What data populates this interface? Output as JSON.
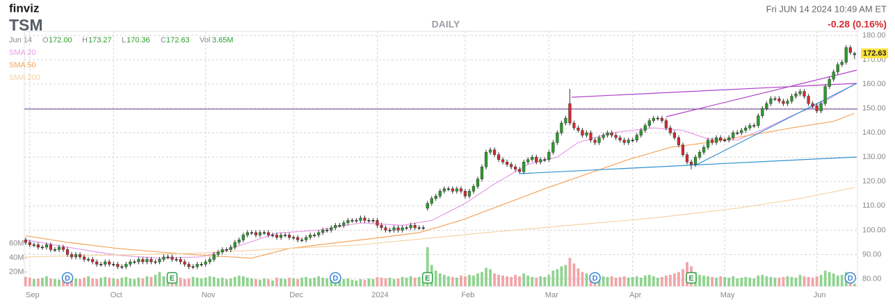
{
  "chart_data": {
    "type": "candlestick",
    "brand": "finviz",
    "symbol": "TSM",
    "timeframe": "DAILY",
    "timestamp": "Fri JUN 14 2024 10:49 AM ET",
    "change": "-0.28 (0.16%)",
    "quote_date": "Jun 14",
    "quote": [
      {
        "label": "O",
        "value": "172.00"
      },
      {
        "label": "H",
        "value": "173.27"
      },
      {
        "label": "L",
        "value": "170.36"
      },
      {
        "label": "C",
        "value": "172.63"
      },
      {
        "label": "Vol",
        "value": "3.65M"
      }
    ],
    "up_color": "#2a9d2a",
    "down_color": "#d42a30",
    "xlim": [
      -0.3,
      198.7
    ],
    "xticks": [
      {
        "value": 1,
        "label": "Sep"
      },
      {
        "value": 21,
        "label": "Oct"
      },
      {
        "value": 43,
        "label": "Nov"
      },
      {
        "value": 64,
        "label": "Dec"
      },
      {
        "value": 84,
        "label": "2024"
      },
      {
        "value": 105,
        "label": "Feb"
      },
      {
        "value": 125,
        "label": "Mar"
      },
      {
        "value": 145,
        "label": "Apr"
      },
      {
        "value": 167,
        "label": "May"
      },
      {
        "value": 189,
        "label": "Jun"
      }
    ],
    "ylim": [
      77,
      181.7
    ],
    "yticks": [
      {
        "value": 80,
        "label": "80.00"
      },
      {
        "value": 90,
        "label": "90.00"
      },
      {
        "value": 100,
        "label": "100.00"
      },
      {
        "value": 110,
        "label": "110.00"
      },
      {
        "value": 120,
        "label": "120.00"
      },
      {
        "value": 130,
        "label": "130.00"
      },
      {
        "value": 140,
        "label": "140.00"
      },
      {
        "value": 150,
        "label": "150.00"
      },
      {
        "value": 160,
        "label": "160.00"
      },
      {
        "value": 170,
        "label": "170.00"
      },
      {
        "value": 180,
        "label": "180.00"
      }
    ],
    "grid": true,
    "open": [
      96,
      95,
      94,
      94,
      93,
      93,
      94,
      92,
      92,
      93,
      92,
      90,
      89,
      90,
      89,
      88,
      88,
      87,
      86,
      86,
      87,
      86,
      86,
      85,
      85,
      86,
      87,
      87,
      88,
      87,
      88,
      87,
      87,
      88,
      89,
      89,
      88,
      88,
      87,
      86,
      85,
      85,
      86,
      86,
      87,
      88,
      90,
      91,
      92,
      92,
      93,
      95,
      96,
      98,
      99,
      99,
      98,
      99,
      99,
      98,
      98,
      97,
      98,
      98,
      97,
      97,
      96,
      96,
      97,
      98,
      98,
      99,
      100,
      100,
      101,
      102,
      102,
      103,
      104,
      104,
      104,
      105,
      104,
      104,
      104,
      102,
      101,
      100,
      100,
      101,
      100,
      101,
      101,
      102,
      101,
      101,
      109,
      111,
      113,
      114,
      116,
      117,
      117,
      116,
      117,
      116,
      114,
      116,
      118,
      121,
      126,
      132,
      133,
      131,
      129,
      128,
      127,
      126,
      125,
      124,
      128,
      129,
      130,
      128,
      129,
      129,
      132,
      136,
      140,
      144,
      152,
      144,
      142,
      141,
      139,
      140,
      137,
      136,
      138,
      139,
      140,
      139,
      138,
      137,
      136,
      137,
      137,
      139,
      141,
      143,
      145,
      146,
      146,
      145,
      142,
      140,
      138,
      135,
      131,
      128,
      127,
      130,
      132,
      134,
      137,
      136,
      138,
      137,
      137,
      138,
      140,
      140,
      141,
      142,
      143,
      143,
      147,
      150,
      152,
      154,
      154,
      153,
      152,
      153,
      155,
      156,
      157,
      155,
      152,
      151,
      149,
      152,
      159,
      162,
      165,
      168,
      169,
      175,
      172
    ],
    "high": [
      97,
      96,
      95,
      95,
      94,
      95,
      95,
      93,
      94,
      94,
      93,
      91,
      91,
      91,
      90,
      89,
      89,
      88,
      87,
      88,
      88,
      87,
      87,
      86,
      87,
      88,
      88,
      89,
      89,
      89,
      89,
      88,
      89,
      90,
      90,
      90,
      89,
      89,
      88,
      87,
      86,
      87,
      87,
      88,
      89,
      91,
      92,
      93,
      93,
      94,
      96,
      97,
      99,
      100,
      100,
      100,
      100,
      100,
      100,
      99,
      99,
      99,
      99,
      99,
      98,
      98,
      97,
      98,
      99,
      99,
      100,
      101,
      101,
      102,
      103,
      103,
      104,
      105,
      105,
      105,
      106,
      106,
      105,
      105,
      105,
      103,
      102,
      101,
      102,
      102,
      102,
      102,
      103,
      103,
      102,
      102,
      112,
      114,
      115,
      117,
      118,
      118,
      118,
      118,
      118,
      117,
      117,
      119,
      122,
      127,
      133,
      134,
      134,
      132,
      130,
      129,
      128,
      127,
      126,
      129,
      130,
      131,
      131,
      130,
      130,
      133,
      137,
      141,
      145,
      147,
      158,
      145,
      143,
      142,
      141,
      141,
      138,
      139,
      140,
      141,
      141,
      140,
      139,
      138,
      138,
      138,
      140,
      142,
      144,
      146,
      147,
      147,
      147,
      146,
      143,
      141,
      139,
      136,
      132,
      129,
      131,
      133,
      135,
      138,
      138,
      139,
      139,
      138,
      139,
      141,
      141,
      142,
      143,
      144,
      144,
      148,
      151,
      153,
      155,
      155,
      155,
      154,
      154,
      156,
      157,
      158,
      158,
      156,
      153,
      152,
      153,
      160,
      163,
      166,
      169,
      170,
      176,
      176,
      173.27
    ],
    "low": [
      94,
      93,
      93,
      92,
      92,
      92,
      91,
      91,
      91,
      91,
      89,
      88,
      88,
      88,
      87,
      87,
      86,
      85,
      85,
      85,
      85,
      85,
      84,
      84,
      84,
      85,
      86,
      86,
      86,
      86,
      86,
      86,
      86,
      87,
      88,
      87,
      87,
      86,
      85,
      84,
      84,
      84,
      85,
      85,
      86,
      87,
      89,
      90,
      91,
      91,
      92,
      94,
      95,
      97,
      98,
      97,
      97,
      98,
      97,
      97,
      96,
      96,
      97,
      96,
      96,
      95,
      95,
      95,
      96,
      97,
      97,
      98,
      99,
      99,
      100,
      101,
      101,
      102,
      103,
      103,
      103,
      103,
      103,
      103,
      101,
      100,
      99,
      99,
      99,
      99,
      99,
      100,
      100,
      100,
      100,
      100,
      108,
      110,
      112,
      113,
      115,
      116,
      115,
      115,
      115,
      113,
      113,
      115,
      117,
      120,
      125,
      131,
      130,
      128,
      127,
      126,
      125,
      124,
      123,
      123,
      127,
      128,
      127,
      127,
      128,
      128,
      131,
      135,
      139,
      143,
      143,
      141,
      140,
      138,
      138,
      136,
      135,
      135,
      137,
      138,
      138,
      137,
      136,
      135,
      135,
      136,
      136,
      138,
      140,
      142,
      144,
      145,
      144,
      141,
      139,
      137,
      134,
      130,
      127,
      125,
      126,
      129,
      131,
      133,
      135,
      135,
      136,
      136,
      136,
      137,
      139,
      139,
      140,
      141,
      142,
      142,
      146,
      149,
      151,
      153,
      152,
      151,
      151,
      152,
      154,
      155,
      154,
      151,
      150,
      148,
      148,
      151,
      158,
      161,
      164,
      167,
      168,
      172,
      170.36
    ],
    "close": [
      95,
      94,
      94,
      93,
      93,
      94,
      92,
      92,
      93,
      92,
      90,
      89,
      90,
      89,
      88,
      88,
      87,
      86,
      86,
      87,
      86,
      86,
      85,
      85,
      86,
      87,
      87,
      88,
      87,
      88,
      87,
      87,
      88,
      89,
      89,
      88,
      88,
      87,
      86,
      85,
      85,
      86,
      86,
      87,
      88,
      90,
      91,
      92,
      92,
      93,
      95,
      96,
      98,
      99,
      99,
      98,
      99,
      99,
      98,
      98,
      97,
      98,
      98,
      97,
      97,
      96,
      96,
      97,
      98,
      98,
      99,
      100,
      100,
      101,
      102,
      102,
      103,
      104,
      104,
      104,
      105,
      104,
      104,
      104,
      102,
      101,
      100,
      100,
      101,
      100,
      101,
      101,
      102,
      101,
      101,
      101,
      111,
      113,
      114,
      116,
      117,
      117,
      116,
      117,
      116,
      114,
      116,
      118,
      121,
      126,
      132,
      133,
      131,
      129,
      128,
      127,
      126,
      125,
      124,
      128,
      129,
      130,
      128,
      129,
      129,
      132,
      136,
      140,
      144,
      146,
      144,
      142,
      141,
      139,
      140,
      137,
      136,
      138,
      139,
      140,
      139,
      138,
      137,
      136,
      137,
      137,
      139,
      141,
      143,
      145,
      146,
      146,
      145,
      142,
      140,
      138,
      135,
      131,
      128,
      127,
      130,
      132,
      134,
      137,
      136,
      138,
      137,
      137,
      138,
      140,
      140,
      141,
      142,
      143,
      143,
      147,
      150,
      152,
      154,
      154,
      153,
      152,
      153,
      155,
      156,
      157,
      155,
      152,
      151,
      149,
      152,
      159,
      162,
      165,
      168,
      169,
      175,
      173,
      172.63
    ],
    "volume": {
      "up_color": "#8fd38f",
      "down_color": "#f3a3a8",
      "ylim": [
        0,
        360
      ],
      "yticks": [
        {
          "value": 20,
          "label": "20M"
        },
        {
          "value": 40,
          "label": "40M"
        },
        {
          "value": 60,
          "label": "60M"
        }
      ],
      "values": [
        13,
        12,
        10,
        11,
        12,
        14,
        11,
        10,
        9,
        12,
        15,
        13,
        11,
        10,
        12,
        14,
        11,
        10,
        12,
        13,
        12,
        11,
        10,
        12,
        13,
        11,
        10,
        12,
        11,
        14,
        13,
        16,
        20,
        14,
        12,
        11,
        13,
        12,
        10,
        11,
        13,
        12,
        11,
        12,
        14,
        13,
        11,
        12,
        10,
        11,
        13,
        15,
        14,
        12,
        11,
        10,
        9,
        11,
        10,
        8,
        12,
        11,
        10,
        12,
        11,
        10,
        12,
        13,
        11,
        12,
        14,
        12,
        11,
        13,
        16,
        12,
        10,
        11,
        9,
        8,
        10,
        9,
        11,
        10,
        13,
        12,
        11,
        12,
        10,
        11,
        13,
        12,
        14,
        12,
        13,
        15,
        55,
        30,
        22,
        18,
        16,
        14,
        13,
        12,
        15,
        14,
        16,
        15,
        18,
        20,
        26,
        24,
        18,
        16,
        15,
        14,
        13,
        16,
        14,
        18,
        15,
        13,
        12,
        14,
        13,
        16,
        22,
        24,
        28,
        30,
        40,
        32,
        25,
        20,
        18,
        16,
        17,
        15,
        14,
        13,
        14,
        12,
        13,
        14,
        12,
        13,
        14,
        12,
        15,
        16,
        14,
        12,
        13,
        15,
        16,
        18,
        20,
        24,
        34,
        28,
        20,
        16,
        15,
        14,
        13,
        12,
        14,
        13,
        12,
        14,
        11,
        12,
        13,
        12,
        11,
        15,
        16,
        14,
        13,
        12,
        12,
        13,
        14,
        13,
        12,
        16,
        14,
        13,
        12,
        14,
        16,
        22,
        20,
        18,
        15,
        16,
        20,
        14,
        3.65
      ]
    },
    "sma": [
      {
        "name": "SMA 20",
        "color": "#e79ae6",
        "x": [
          0,
          10,
          22,
          32,
          42,
          50,
          60,
          70,
          80,
          90,
          97,
          105,
          112,
          120,
          127,
          132,
          140,
          150,
          157,
          163,
          170,
          177,
          183,
          190,
          198
        ],
        "values": [
          96,
          93,
          89.7,
          88.5,
          89,
          93,
          98.8,
          100,
          103,
          102,
          104,
          111,
          119,
          127,
          130,
          136,
          140,
          142,
          141,
          137.5,
          137,
          142,
          147,
          152,
          160
        ]
      },
      {
        "name": "SMA 50",
        "color": "#f4a25a",
        "x": [
          0,
          10,
          22,
          32,
          44,
          54,
          63,
          74,
          84,
          94,
          104,
          114,
          124,
          134,
          144,
          154,
          163,
          173,
          183,
          193,
          198
        ],
        "values": [
          97.7,
          95,
          92.5,
          91,
          89.5,
          88.5,
          92.5,
          94.8,
          96.8,
          99,
          104,
          110.5,
          117,
          123,
          129,
          134,
          136,
          139,
          142,
          144.7,
          148
        ]
      },
      {
        "name": "SMA 200",
        "color": "#f5d3a5",
        "x": [
          0,
          40,
          80,
          110,
          130,
          150,
          170,
          185,
          198
        ],
        "values": [
          89,
          90.5,
          94,
          99,
          102,
          105,
          109,
          113,
          117.5
        ]
      }
    ],
    "events": [
      {
        "label": "D",
        "x": 10
      },
      {
        "label": "E",
        "x": 35
      },
      {
        "label": "D",
        "x": 74
      },
      {
        "label": "E",
        "x": 96
      },
      {
        "label": "D",
        "x": 136
      },
      {
        "label": "E",
        "x": 159
      },
      {
        "label": "D",
        "x": 197
      }
    ],
    "event_colors": {
      "D": "#3b86d4",
      "E": "#2f9e44"
    }
  }
}
